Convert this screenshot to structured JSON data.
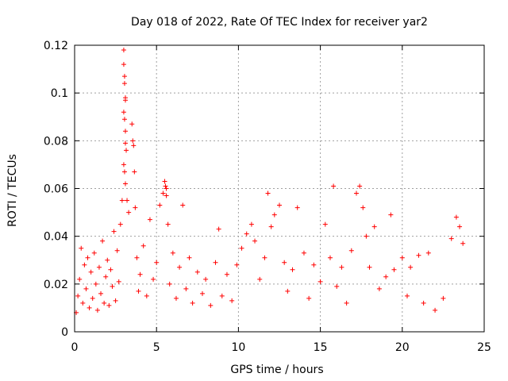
{
  "chart_data": {
    "type": "scatter",
    "title": "Day 018 of 2022, Rate Of TEC Index for receiver yar2",
    "xlabel": "GPS time / hours",
    "ylabel": "ROTI / TECUs",
    "xlim": [
      0,
      25
    ],
    "ylim": [
      0,
      0.12
    ],
    "xticks": [
      0,
      5,
      10,
      15,
      20,
      25
    ],
    "yticks": [
      0,
      0.02,
      0.04,
      0.06,
      0.08,
      0.1,
      0.12
    ],
    "xtick_labels": [
      "0",
      "5",
      "10",
      "15",
      "20",
      "25"
    ],
    "ytick_labels": [
      "0",
      "0.02",
      "0.04",
      "0.06",
      "0.08",
      "0.1",
      "0.12"
    ],
    "grid": true,
    "marker": "+",
    "color": "#ff0000",
    "series": [
      {
        "name": "ROTI",
        "points": [
          [
            0.1,
            0.008
          ],
          [
            0.2,
            0.015
          ],
          [
            0.3,
            0.022
          ],
          [
            0.4,
            0.035
          ],
          [
            0.5,
            0.012
          ],
          [
            0.6,
            0.028
          ],
          [
            0.7,
            0.018
          ],
          [
            0.8,
            0.031
          ],
          [
            0.9,
            0.01
          ],
          [
            1.0,
            0.025
          ],
          [
            1.1,
            0.014
          ],
          [
            1.2,
            0.033
          ],
          [
            1.3,
            0.02
          ],
          [
            1.4,
            0.009
          ],
          [
            1.5,
            0.027
          ],
          [
            1.6,
            0.016
          ],
          [
            1.7,
            0.038
          ],
          [
            1.8,
            0.012
          ],
          [
            1.9,
            0.023
          ],
          [
            2.0,
            0.03
          ],
          [
            2.1,
            0.011
          ],
          [
            2.2,
            0.026
          ],
          [
            2.3,
            0.019
          ],
          [
            2.4,
            0.042
          ],
          [
            2.5,
            0.013
          ],
          [
            2.6,
            0.034
          ],
          [
            2.7,
            0.021
          ],
          [
            2.8,
            0.045
          ],
          [
            2.9,
            0.055
          ],
          [
            3.0,
            0.118
          ],
          [
            3.0,
            0.112
          ],
          [
            3.05,
            0.107
          ],
          [
            3.05,
            0.104
          ],
          [
            3.1,
            0.098
          ],
          [
            3.1,
            0.097
          ],
          [
            3.0,
            0.092
          ],
          [
            3.05,
            0.089
          ],
          [
            3.1,
            0.084
          ],
          [
            3.1,
            0.079
          ],
          [
            3.15,
            0.076
          ],
          [
            3.0,
            0.07
          ],
          [
            3.05,
            0.067
          ],
          [
            3.1,
            0.062
          ],
          [
            3.2,
            0.055
          ],
          [
            3.3,
            0.05
          ],
          [
            3.5,
            0.087
          ],
          [
            3.55,
            0.08
          ],
          [
            3.6,
            0.078
          ],
          [
            3.65,
            0.067
          ],
          [
            3.7,
            0.052
          ],
          [
            3.8,
            0.031
          ],
          [
            3.9,
            0.017
          ],
          [
            4.0,
            0.024
          ],
          [
            4.2,
            0.036
          ],
          [
            4.4,
            0.015
          ],
          [
            4.6,
            0.047
          ],
          [
            4.8,
            0.022
          ],
          [
            5.0,
            0.029
          ],
          [
            5.2,
            0.053
          ],
          [
            5.4,
            0.058
          ],
          [
            5.5,
            0.063
          ],
          [
            5.55,
            0.061
          ],
          [
            5.6,
            0.06
          ],
          [
            5.6,
            0.057
          ],
          [
            5.7,
            0.045
          ],
          [
            5.8,
            0.02
          ],
          [
            6.0,
            0.033
          ],
          [
            6.2,
            0.014
          ],
          [
            6.4,
            0.027
          ],
          [
            6.6,
            0.053
          ],
          [
            6.8,
            0.018
          ],
          [
            7.0,
            0.031
          ],
          [
            7.2,
            0.012
          ],
          [
            7.5,
            0.025
          ],
          [
            7.8,
            0.016
          ],
          [
            8.0,
            0.022
          ],
          [
            8.3,
            0.011
          ],
          [
            8.6,
            0.029
          ],
          [
            8.8,
            0.043
          ],
          [
            9.0,
            0.015
          ],
          [
            9.3,
            0.024
          ],
          [
            9.6,
            0.013
          ],
          [
            9.9,
            0.028
          ],
          [
            10.2,
            0.035
          ],
          [
            10.5,
            0.041
          ],
          [
            10.8,
            0.045
          ],
          [
            11.0,
            0.038
          ],
          [
            11.3,
            0.022
          ],
          [
            11.6,
            0.031
          ],
          [
            11.8,
            0.058
          ],
          [
            12.0,
            0.044
          ],
          [
            12.2,
            0.049
          ],
          [
            12.5,
            0.053
          ],
          [
            12.8,
            0.029
          ],
          [
            13.0,
            0.017
          ],
          [
            13.3,
            0.026
          ],
          [
            13.6,
            0.052
          ],
          [
            14.0,
            0.033
          ],
          [
            14.3,
            0.014
          ],
          [
            14.6,
            0.028
          ],
          [
            15.0,
            0.021
          ],
          [
            15.3,
            0.045
          ],
          [
            15.6,
            0.031
          ],
          [
            15.8,
            0.061
          ],
          [
            16.0,
            0.019
          ],
          [
            16.3,
            0.027
          ],
          [
            16.6,
            0.012
          ],
          [
            16.9,
            0.034
          ],
          [
            17.2,
            0.058
          ],
          [
            17.4,
            0.061
          ],
          [
            17.6,
            0.052
          ],
          [
            17.8,
            0.04
          ],
          [
            18.0,
            0.027
          ],
          [
            18.3,
            0.044
          ],
          [
            18.6,
            0.018
          ],
          [
            19.0,
            0.023
          ],
          [
            19.3,
            0.049
          ],
          [
            19.5,
            0.026
          ],
          [
            20.0,
            0.031
          ],
          [
            20.3,
            0.015
          ],
          [
            20.5,
            0.027
          ],
          [
            21.0,
            0.032
          ],
          [
            21.3,
            0.012
          ],
          [
            21.6,
            0.033
          ],
          [
            22.0,
            0.009
          ],
          [
            22.5,
            0.014
          ],
          [
            23.0,
            0.039
          ],
          [
            23.3,
            0.048
          ],
          [
            23.5,
            0.044
          ],
          [
            23.7,
            0.037
          ]
        ]
      }
    ]
  }
}
